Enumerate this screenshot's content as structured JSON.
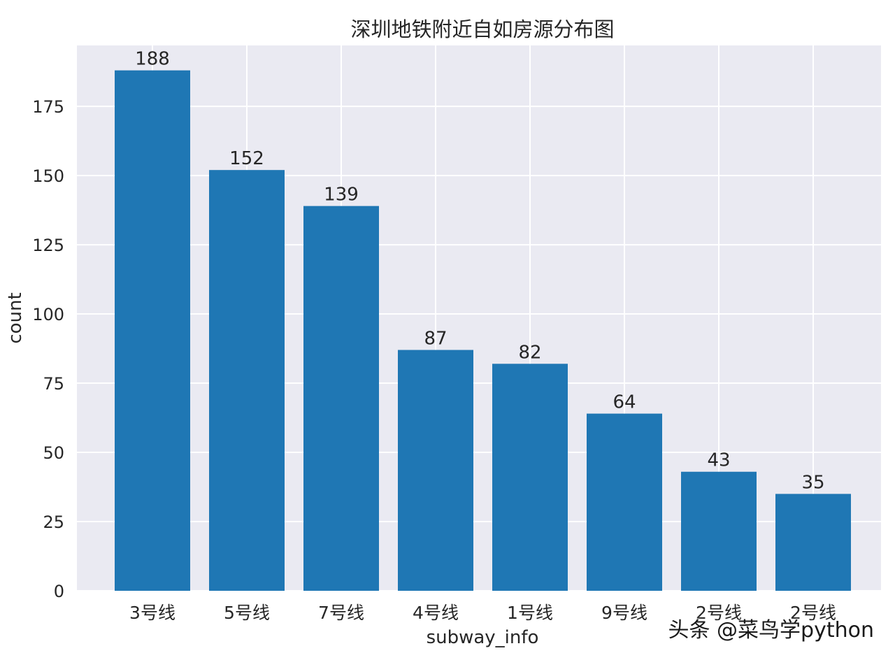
{
  "chart_data": {
    "type": "bar",
    "title": "深圳地铁附近自如房源分布图",
    "xlabel": "subway_info",
    "ylabel": "count",
    "categories": [
      "3号线",
      "5号线",
      "7号线",
      "4号线",
      "1号线",
      "9号线",
      "2号线",
      "2号线"
    ],
    "values": [
      188,
      152,
      139,
      87,
      82,
      64,
      43,
      35
    ],
    "data_labels": [
      "188",
      "152",
      "139",
      "87",
      "82",
      "64",
      "43",
      "35"
    ],
    "ylim": [
      0,
      197
    ],
    "yticks": [
      0,
      25,
      50,
      75,
      100,
      125,
      150,
      175
    ],
    "grid": true,
    "colors": {
      "bar": "#1f77b4",
      "plot_bg": "#eaeaf2",
      "grid": "#ffffff",
      "text": "#262626"
    }
  },
  "watermark": {
    "text": "头条 @菜鸟学python"
  }
}
